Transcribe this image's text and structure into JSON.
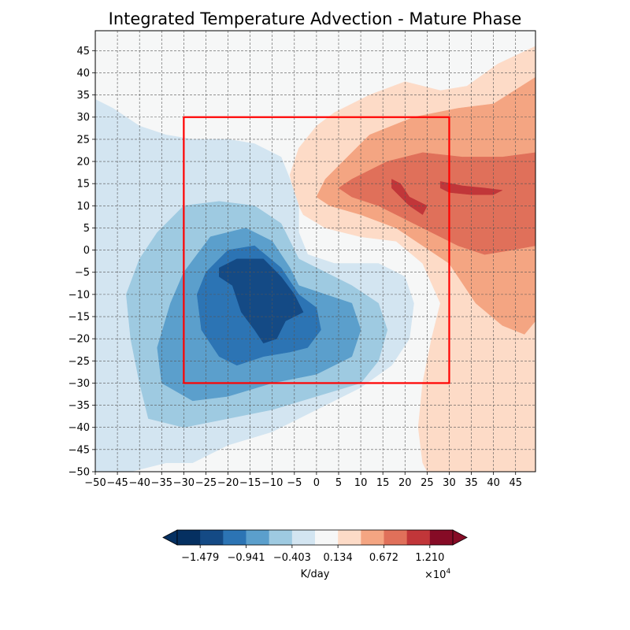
{
  "chart_data": {
    "type": "heatmap",
    "title": "Integrated Temperature Advection - Mature Phase",
    "xlim": [
      -50,
      49.5
    ],
    "ylim": [
      -50,
      49.5
    ],
    "x_ticks": [
      -50,
      -45,
      -40,
      -35,
      -30,
      -25,
      -20,
      -15,
      -10,
      -5,
      0,
      5,
      10,
      15,
      20,
      25,
      30,
      35,
      40,
      45
    ],
    "y_ticks": [
      -50,
      -45,
      -40,
      -35,
      -30,
      -25,
      -20,
      -15,
      -10,
      -5,
      0,
      5,
      10,
      15,
      20,
      25,
      30,
      35,
      40,
      45
    ],
    "x_tick_labels": [
      "−50",
      "−45",
      "−40",
      "−35",
      "−30",
      "−25",
      "−20",
      "−15",
      "−10",
      "−5",
      "0",
      "5",
      "10",
      "15",
      "20",
      "25",
      "30",
      "35",
      "40",
      "45"
    ],
    "y_tick_labels": [
      "−50",
      "−45",
      "−40",
      "−35",
      "−30",
      "−25",
      "−20",
      "−15",
      "−10",
      "−5",
      "0",
      "5",
      "10",
      "15",
      "20",
      "25",
      "30",
      "35",
      "40",
      "45"
    ],
    "grid": true,
    "box": {
      "x0": -30,
      "x1": 30,
      "y0": -30,
      "y1": 30,
      "color": "#ff0000"
    },
    "colorbar": {
      "label": "K/day",
      "multiplier": "×10",
      "multiplier_exponent": "4",
      "tick_labels": [
        "−1.479",
        "−0.941",
        "−0.403",
        "0.134",
        "0.672",
        "1.210"
      ],
      "tick_values": [
        -1.479,
        -0.941,
        -0.403,
        0.134,
        0.672,
        1.21
      ],
      "levels": [
        -1.748,
        -1.479,
        -1.21,
        -0.941,
        -0.672,
        -0.403,
        -0.134,
        0.134,
        0.403,
        0.672,
        0.941,
        1.21,
        1.479
      ],
      "colors": [
        "#053061",
        "#144a85",
        "#2c74b4",
        "#5b9fcc",
        "#9ecae1",
        "#d3e5f1",
        "#f6f7f7",
        "#fddbc7",
        "#f4a582",
        "#e0705a",
        "#c13639",
        "#860b26"
      ],
      "extend": "both"
    },
    "regions": [
      {
        "name": "warm-plume-level-1",
        "level": 7,
        "value_range": [
          0.134,
          0.403
        ],
        "points": [
          [
            49.5,
            46
          ],
          [
            41,
            42
          ],
          [
            34,
            37
          ],
          [
            28,
            36
          ],
          [
            20,
            38
          ],
          [
            12,
            35
          ],
          [
            4,
            31
          ],
          [
            0,
            28
          ],
          [
            -4,
            23
          ],
          [
            -6,
            17
          ],
          [
            -5,
            12
          ],
          [
            -3,
            8
          ],
          [
            2,
            5
          ],
          [
            10,
            3
          ],
          [
            18,
            2
          ],
          [
            24,
            -3
          ],
          [
            28,
            -12
          ],
          [
            26,
            -20
          ],
          [
            24,
            -30
          ],
          [
            23,
            -40
          ],
          [
            24,
            -48
          ],
          [
            25,
            -50
          ],
          [
            49.5,
            -50
          ]
        ]
      },
      {
        "name": "warm-plume-level-2",
        "level": 8,
        "value_range": [
          0.403,
          0.672
        ],
        "points": [
          [
            49.5,
            39
          ],
          [
            40,
            33
          ],
          [
            32,
            32
          ],
          [
            22,
            30
          ],
          [
            12,
            26
          ],
          [
            6,
            20
          ],
          [
            2,
            16
          ],
          [
            0,
            12
          ],
          [
            3,
            10
          ],
          [
            10,
            8
          ],
          [
            18,
            5
          ],
          [
            24,
            1
          ],
          [
            30,
            -3
          ],
          [
            36,
            -12
          ],
          [
            42,
            -17
          ],
          [
            47,
            -19
          ],
          [
            49.5,
            -16
          ]
        ]
      },
      {
        "name": "warm-plume-level-3",
        "level": 9,
        "value_range": [
          0.672,
          0.941
        ],
        "points": [
          [
            49.5,
            22
          ],
          [
            42,
            21
          ],
          [
            33,
            21
          ],
          [
            24,
            22
          ],
          [
            16,
            20
          ],
          [
            8,
            16
          ],
          [
            5,
            14
          ],
          [
            8,
            12
          ],
          [
            14,
            10
          ],
          [
            20,
            7
          ],
          [
            26,
            4
          ],
          [
            32,
            1
          ],
          [
            38,
            -1
          ],
          [
            44,
            0
          ],
          [
            49.5,
            1
          ]
        ]
      },
      {
        "name": "warm-core-level-4a",
        "level": 10,
        "value_range": [
          0.941,
          1.21
        ],
        "points": [
          [
            17,
            16
          ],
          [
            19,
            15
          ],
          [
            21,
            12
          ],
          [
            25,
            10
          ],
          [
            24,
            8
          ],
          [
            21,
            10
          ],
          [
            19,
            12
          ],
          [
            17,
            14
          ]
        ]
      },
      {
        "name": "warm-core-level-4b",
        "level": 10,
        "value_range": [
          0.941,
          1.21
        ],
        "points": [
          [
            28,
            15.5
          ],
          [
            33,
            14.5
          ],
          [
            38,
            14
          ],
          [
            42,
            13.5
          ],
          [
            40,
            12.5
          ],
          [
            35,
            12.5
          ],
          [
            30,
            13
          ],
          [
            28,
            14
          ]
        ]
      },
      {
        "name": "cold-pool-level-1",
        "level": 5,
        "value_range": [
          -0.403,
          -0.134
        ],
        "points": [
          [
            -50,
            34
          ],
          [
            -46,
            32
          ],
          [
            -40,
            28
          ],
          [
            -34,
            26
          ],
          [
            -28,
            25
          ],
          [
            -20,
            25
          ],
          [
            -14,
            24
          ],
          [
            -8,
            21
          ],
          [
            -6,
            16
          ],
          [
            -4,
            10
          ],
          [
            -4,
            4
          ],
          [
            -2,
            -1
          ],
          [
            4,
            -3
          ],
          [
            14,
            -3
          ],
          [
            20,
            -6
          ],
          [
            22,
            -12
          ],
          [
            21,
            -20
          ],
          [
            17,
            -26
          ],
          [
            10,
            -31
          ],
          [
            0,
            -36
          ],
          [
            -10,
            -41
          ],
          [
            -20,
            -44
          ],
          [
            -28,
            -48
          ],
          [
            -34,
            -48
          ],
          [
            -42,
            -50
          ],
          [
            -50,
            -50
          ]
        ]
      },
      {
        "name": "cold-pool-level-2",
        "level": 4,
        "value_range": [
          -0.672,
          -0.403
        ],
        "points": [
          [
            -36,
            4
          ],
          [
            -30,
            10
          ],
          [
            -22,
            11
          ],
          [
            -14,
            10
          ],
          [
            -8,
            6
          ],
          [
            -4,
            -2
          ],
          [
            2,
            -5
          ],
          [
            8,
            -8
          ],
          [
            14,
            -12
          ],
          [
            16,
            -18
          ],
          [
            14,
            -25
          ],
          [
            10,
            -30
          ],
          [
            0,
            -33
          ],
          [
            -10,
            -36
          ],
          [
            -20,
            -38
          ],
          [
            -30,
            -40
          ],
          [
            -38,
            -38
          ],
          [
            -40,
            -30
          ],
          [
            -42,
            -20
          ],
          [
            -43,
            -10
          ],
          [
            -40,
            -2
          ]
        ]
      },
      {
        "name": "cold-pool-level-3",
        "level": 3,
        "value_range": [
          -0.941,
          -0.672
        ],
        "points": [
          [
            -30,
            -5
          ],
          [
            -24,
            3
          ],
          [
            -16,
            5
          ],
          [
            -10,
            2
          ],
          [
            -6,
            -4
          ],
          [
            -4,
            -8
          ],
          [
            2,
            -10
          ],
          [
            8,
            -12
          ],
          [
            10,
            -18
          ],
          [
            8,
            -24
          ],
          [
            0,
            -28
          ],
          [
            -10,
            -30
          ],
          [
            -20,
            -33
          ],
          [
            -28,
            -34
          ],
          [
            -35,
            -30
          ],
          [
            -36,
            -22
          ],
          [
            -33,
            -12
          ]
        ]
      },
      {
        "name": "cold-pool-level-4",
        "level": 2,
        "value_range": [
          -1.21,
          -0.941
        ],
        "points": [
          [
            -25,
            -5
          ],
          [
            -20,
            0
          ],
          [
            -14,
            1
          ],
          [
            -8,
            -4
          ],
          [
            -4,
            -10
          ],
          [
            0,
            -13
          ],
          [
            1,
            -18
          ],
          [
            -2,
            -22
          ],
          [
            -6,
            -23
          ],
          [
            -12,
            -24
          ],
          [
            -18,
            -26
          ],
          [
            -22,
            -24
          ],
          [
            -26,
            -18
          ],
          [
            -27,
            -10
          ]
        ]
      },
      {
        "name": "cold-pool-level-5",
        "level": 1,
        "value_range": [
          -1.479,
          -1.21
        ],
        "points": [
          [
            -22,
            -4
          ],
          [
            -18,
            -2
          ],
          [
            -12,
            -2
          ],
          [
            -8,
            -6
          ],
          [
            -5,
            -10
          ],
          [
            -3,
            -14
          ],
          [
            -7,
            -16
          ],
          [
            -9,
            -20
          ],
          [
            -12,
            -21
          ],
          [
            -14,
            -18
          ],
          [
            -17,
            -14
          ],
          [
            -19,
            -8
          ],
          [
            -22,
            -6
          ]
        ]
      }
    ]
  }
}
